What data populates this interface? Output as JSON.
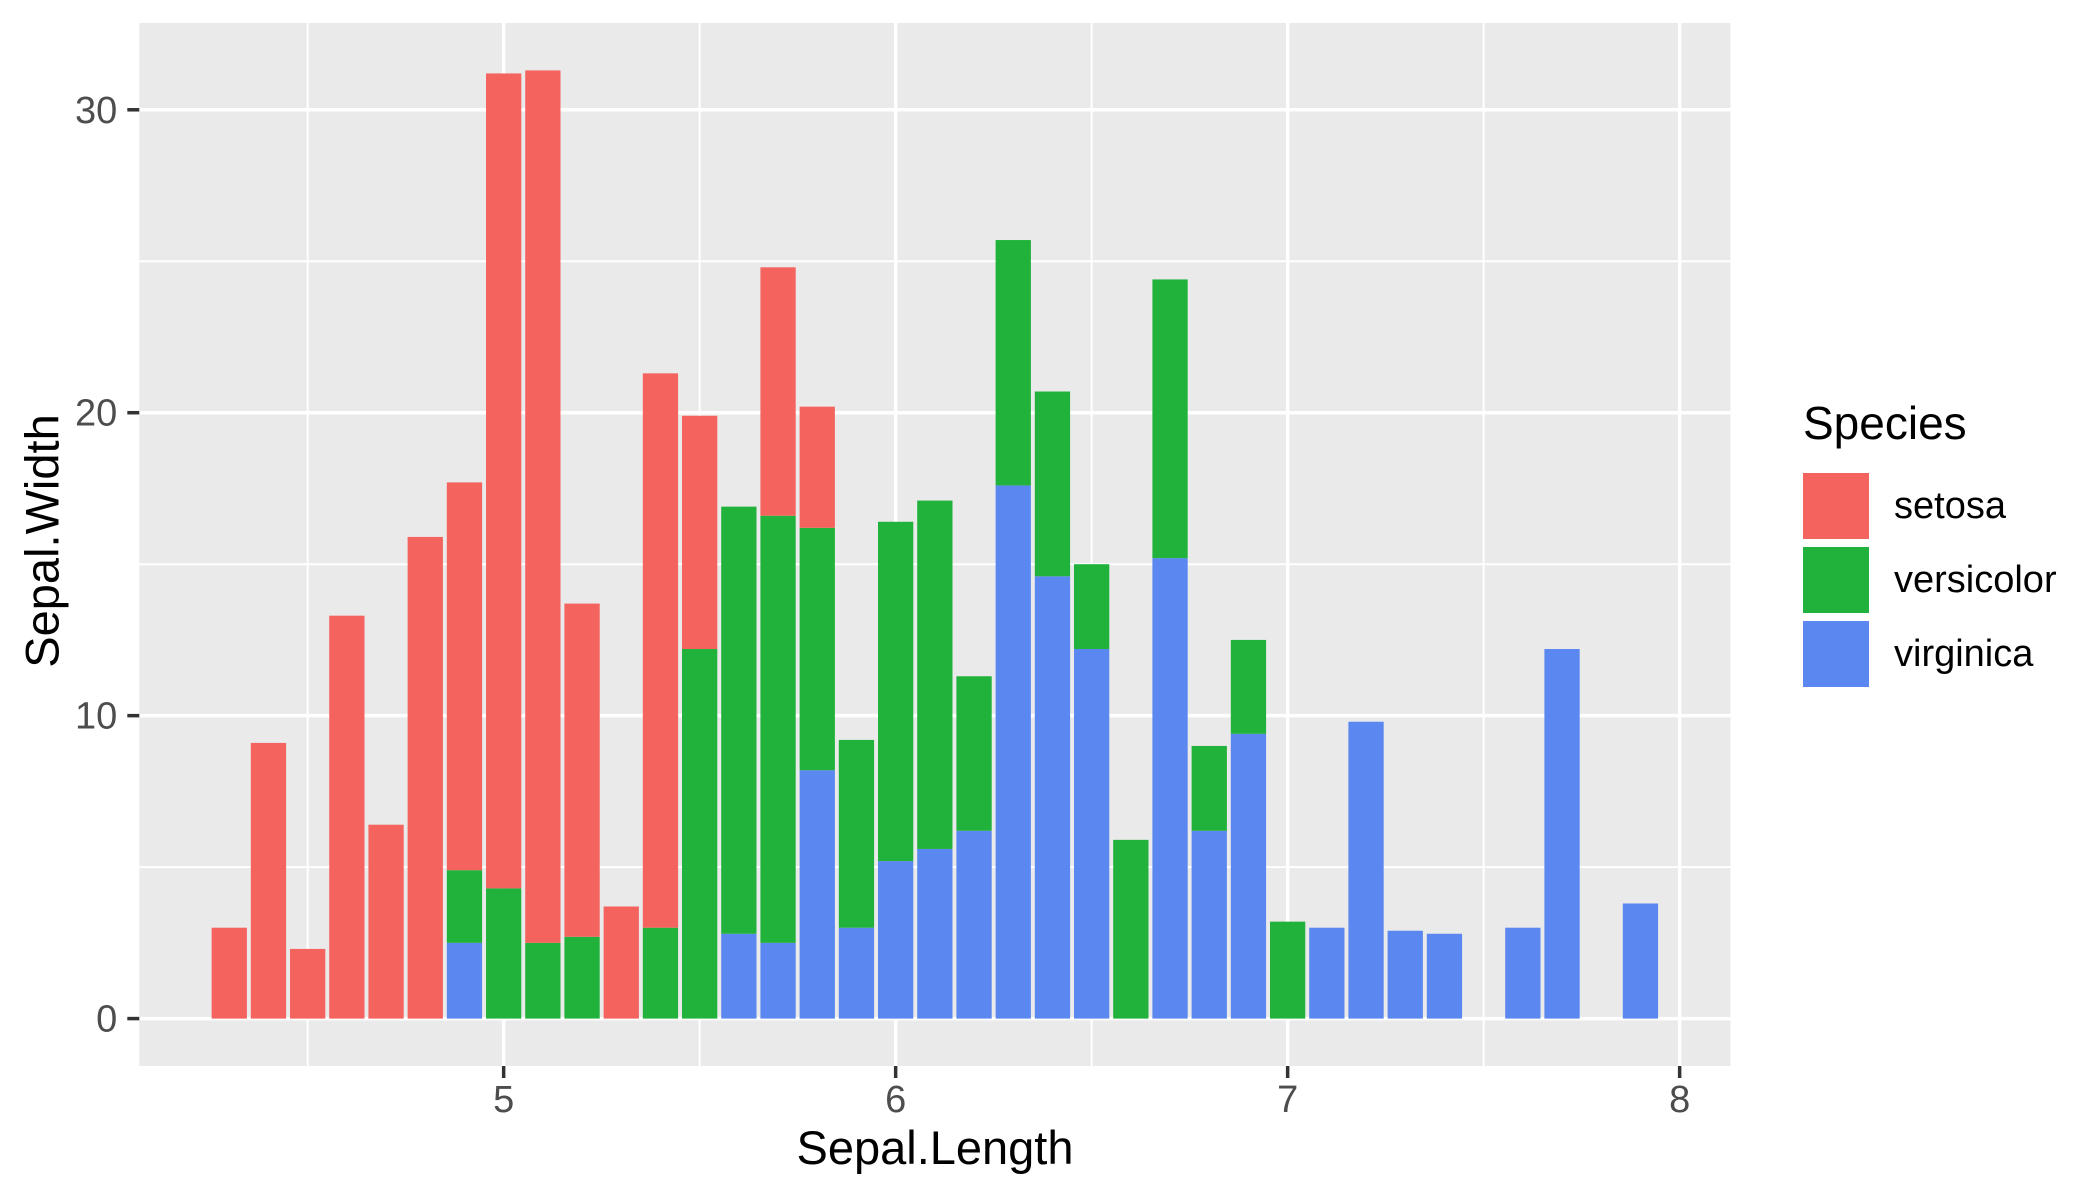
{
  "chart_data": {
    "type": "bar",
    "stacked": true,
    "title": "",
    "xlabel": "Sepal.Length",
    "ylabel": "Sepal.Width",
    "legend_title": "Species",
    "legend_position": "right",
    "grid": true,
    "x": [
      4.3,
      4.4,
      4.5,
      4.6,
      4.7,
      4.8,
      4.9,
      5.0,
      5.1,
      5.2,
      5.3,
      5.4,
      5.5,
      5.6,
      5.7,
      5.8,
      5.9,
      6.0,
      6.1,
      6.2,
      6.3,
      6.4,
      6.5,
      6.6,
      6.7,
      6.8,
      6.9,
      7.0,
      7.1,
      7.2,
      7.3,
      7.4,
      7.6,
      7.7,
      7.9
    ],
    "series": [
      {
        "name": "setosa",
        "color": "#F4635E",
        "values": [
          3.0,
          9.1,
          2.3,
          13.3,
          6.4,
          15.9,
          12.8,
          26.9,
          28.8,
          11.0,
          3.7,
          18.3,
          7.7,
          0,
          8.2,
          4.0,
          0,
          0,
          0,
          0,
          0,
          0,
          0,
          0,
          0,
          0,
          0,
          0,
          0,
          0,
          0,
          0,
          0,
          0,
          0
        ]
      },
      {
        "name": "versicolor",
        "color": "#20B23A",
        "values": [
          0,
          0,
          0,
          0,
          0,
          0,
          2.4,
          4.3,
          2.5,
          2.7,
          0,
          3.0,
          12.2,
          14.1,
          14.1,
          8.0,
          6.2,
          11.2,
          11.5,
          5.1,
          8.1,
          6.1,
          2.8,
          5.9,
          9.2,
          2.8,
          3.1,
          3.2,
          0,
          0,
          0,
          0,
          0,
          0,
          0
        ]
      },
      {
        "name": "virginica",
        "color": "#5B87F0",
        "values": [
          0,
          0,
          0,
          0,
          0,
          0,
          2.5,
          0,
          0,
          0,
          0,
          0,
          0,
          2.8,
          2.5,
          8.2,
          3.0,
          5.2,
          5.6,
          6.2,
          17.6,
          14.6,
          12.2,
          0,
          15.2,
          6.2,
          9.4,
          0,
          3.0,
          9.8,
          2.9,
          2.8,
          3.0,
          12.2,
          3.8
        ]
      }
    ],
    "stack_order_bottom_to_top": [
      "virginica",
      "versicolor",
      "setosa"
    ],
    "bar_width": 0.09,
    "xlim": [
      4.0705,
      8.1295
    ],
    "ylim": [
      -1.565,
      32.865
    ],
    "xticks": [
      5,
      6,
      7,
      8
    ],
    "yticks": [
      0,
      10,
      20,
      30
    ],
    "x_minor": [
      4.5,
      5.5,
      6.5,
      7.5
    ],
    "y_minor": [
      5,
      15,
      25
    ],
    "colors": {
      "panel_background": "#EAEAEA",
      "gridline": "#FFFFFF",
      "axis_tick": "#333333",
      "tick_label": "#4D4D4D",
      "axis_title": "#000000",
      "background": "#FFFFFF"
    }
  }
}
